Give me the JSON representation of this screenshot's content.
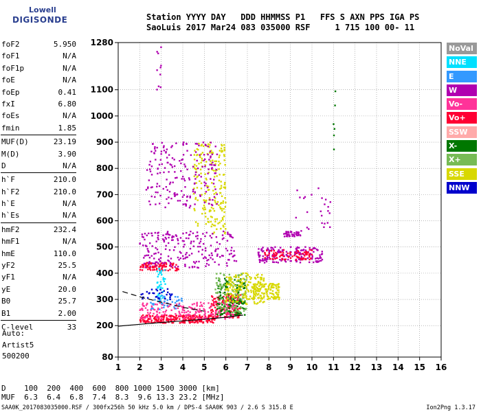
{
  "logo": {
    "line1": "Lowell",
    "line2": "DIGISONDE"
  },
  "header": {
    "line1": "Station YYYY DAY   DDD HHMMSS P1   FFS S AXN PPS IGA PS",
    "line2": "SaoLuis 2017 Mar24 083 035000 RSF     1 715 100 00- 11"
  },
  "params": [
    [
      {
        "name": "foF2",
        "value": "5.950"
      },
      {
        "name": "foF1",
        "value": "N/A"
      },
      {
        "name": "foF1p",
        "value": "N/A"
      },
      {
        "name": "foE",
        "value": "N/A"
      },
      {
        "name": "foEp",
        "value": "0.41"
      },
      {
        "name": "fxI",
        "value": "6.80"
      },
      {
        "name": "foEs",
        "value": "N/A"
      },
      {
        "name": "fmin",
        "value": "1.85"
      }
    ],
    [
      {
        "name": "MUF(D)",
        "value": "23.19"
      },
      {
        "name": "M(D)",
        "value": "3.90"
      },
      {
        "name": "D",
        "value": "N/A"
      }
    ],
    [
      {
        "name": "h`F",
        "value": "210.0"
      },
      {
        "name": "h`F2",
        "value": "210.0"
      },
      {
        "name": "h`E",
        "value": "N/A"
      },
      {
        "name": "h`Es",
        "value": "N/A"
      }
    ],
    [
      {
        "name": "hmF2",
        "value": "232.4"
      },
      {
        "name": "hmF1",
        "value": "N/A"
      },
      {
        "name": "hmE",
        "value": "110.0"
      },
      {
        "name": "yF2",
        "value": "25.5"
      },
      {
        "name": "yF1",
        "value": "N/A"
      },
      {
        "name": "yE",
        "value": "20.0"
      },
      {
        "name": "B0",
        "value": "25.7"
      },
      {
        "name": "B1",
        "value": "2.00"
      }
    ],
    [
      {
        "name": "C-level",
        "value": "33"
      }
    ]
  ],
  "auto": {
    "line1": "Auto:",
    "line2": "Artist5",
    "line3": "500200"
  },
  "legend": [
    {
      "label": "NoVal",
      "color": "#999999"
    },
    {
      "label": "NNE",
      "color": "#00e0ff"
    },
    {
      "label": "E",
      "color": "#3399ff"
    },
    {
      "label": "W",
      "color": "#b000b0"
    },
    {
      "label": "Vo-",
      "color": "#ff3399"
    },
    {
      "label": "Vo+",
      "color": "#ff0033"
    },
    {
      "label": "SSW",
      "color": "#ffaaaa"
    },
    {
      "label": "X-",
      "color": "#007700"
    },
    {
      "label": "X+",
      "color": "#77bb55"
    },
    {
      "label": "SSE",
      "color": "#d8d800"
    },
    {
      "label": "NNW",
      "color": "#0000cc"
    }
  ],
  "dtable": {
    "row1": "D    100  200  400  600  800 1000 1500 3000 [km]",
    "row2": "MUF  6.3  6.4  6.8  7.4  8.3  9.6 13.3 23.2 [MHz]"
  },
  "footer": "SAA0K_2017083035000.RSF / 300fx256h 50 kHz 5.0 km / DPS-4 SAA0K 903 / 2.6 S 315.8 E",
  "version": "Ion2Png 1.3.17",
  "chart_data": {
    "type": "scatter",
    "title": "",
    "xlabel": "",
    "ylabel": "",
    "x_ticks": [
      1,
      2,
      3,
      4,
      5,
      6,
      7,
      8,
      9,
      10,
      11,
      12,
      13,
      14,
      15,
      16
    ],
    "y_ticks": [
      80,
      200,
      300,
      400,
      500,
      600,
      700,
      800,
      900,
      1000,
      1100,
      1280
    ],
    "xlim": [
      1,
      16
    ],
    "ylim": [
      80,
      1280
    ],
    "grid": "dotted",
    "clusters": [
      {
        "name": "Vo+",
        "color": "#ff0033",
        "x": [
          2.0,
          5.5
        ],
        "y": [
          210,
          240
        ],
        "n": 260
      },
      {
        "name": "Vo+",
        "color": "#ff0033",
        "x": [
          5.3,
          6.7
        ],
        "y": [
          230,
          320
        ],
        "n": 160
      },
      {
        "name": "Vo-",
        "color": "#ff3399",
        "x": [
          2.0,
          6.5
        ],
        "y": [
          225,
          290
        ],
        "n": 200
      },
      {
        "name": "X-",
        "color": "#007700",
        "x": [
          5.6,
          6.9
        ],
        "y": [
          240,
          380
        ],
        "n": 150
      },
      {
        "name": "X+",
        "color": "#77bb55",
        "x": [
          5.5,
          7.0
        ],
        "y": [
          250,
          400
        ],
        "n": 120
      },
      {
        "name": "SSE",
        "color": "#d8d800",
        "x": [
          6.0,
          7.8
        ],
        "y": [
          280,
          400
        ],
        "n": 160
      },
      {
        "name": "SSE",
        "color": "#d8d800",
        "x": [
          7.2,
          8.5
        ],
        "y": [
          300,
          360
        ],
        "n": 120
      },
      {
        "name": "SSE",
        "color": "#d8d800",
        "x": [
          4.5,
          6.0
        ],
        "y": [
          550,
          900
        ],
        "n": 200
      },
      {
        "name": "Vo+",
        "color": "#ff0033",
        "x": [
          2.0,
          3.8
        ],
        "y": [
          410,
          440
        ],
        "n": 100
      },
      {
        "name": "W",
        "color": "#b000b0",
        "x": [
          2.0,
          6.5
        ],
        "y": [
          420,
          560
        ],
        "n": 220
      },
      {
        "name": "W",
        "color": "#b000b0",
        "x": [
          2.3,
          5.6
        ],
        "y": [
          650,
          900
        ],
        "n": 200
      },
      {
        "name": "W",
        "color": "#b000b0",
        "x": [
          7.5,
          10.5
        ],
        "y": [
          440,
          500
        ],
        "n": 180
      },
      {
        "name": "Vo+",
        "color": "#ff0033",
        "x": [
          7.8,
          10.0
        ],
        "y": [
          450,
          490
        ],
        "n": 80
      },
      {
        "name": "W",
        "color": "#b000b0",
        "x": [
          8.7,
          9.5
        ],
        "y": [
          540,
          560
        ],
        "n": 40
      },
      {
        "name": "NNE",
        "color": "#00e0ff",
        "x": [
          2.8,
          3.2
        ],
        "y": [
          280,
          420
        ],
        "n": 40
      },
      {
        "name": "E",
        "color": "#3399ff",
        "x": [
          2.5,
          4.0
        ],
        "y": [
          260,
          320
        ],
        "n": 40
      },
      {
        "name": "NNW",
        "color": "#0000cc",
        "x": [
          2.0,
          3.5
        ],
        "y": [
          300,
          340
        ],
        "n": 30
      },
      {
        "name": "W",
        "color": "#b000b0",
        "x": [
          9.2,
          11.0
        ],
        "y": [
          560,
          740
        ],
        "n": 25
      },
      {
        "name": "W",
        "color": "#b000b0",
        "x": [
          2.8,
          3.0
        ],
        "y": [
          1100,
          1280
        ],
        "n": 10
      },
      {
        "name": "X-",
        "color": "#007700",
        "x": [
          11.0,
          11.1
        ],
        "y": [
          850,
          1110
        ],
        "n": 6
      }
    ],
    "lines": [
      {
        "style": "solid",
        "points": [
          [
            1.0,
            198
          ],
          [
            2.0,
            205
          ],
          [
            3.0,
            212
          ],
          [
            4.0,
            218
          ],
          [
            5.0,
            224
          ],
          [
            6.0,
            232
          ],
          [
            6.8,
            240
          ]
        ]
      },
      {
        "style": "dashed",
        "points": [
          [
            1.2,
            330
          ],
          [
            2.2,
            305
          ],
          [
            3.0,
            290
          ],
          [
            4.0,
            270
          ],
          [
            5.0,
            255
          ]
        ]
      }
    ]
  }
}
